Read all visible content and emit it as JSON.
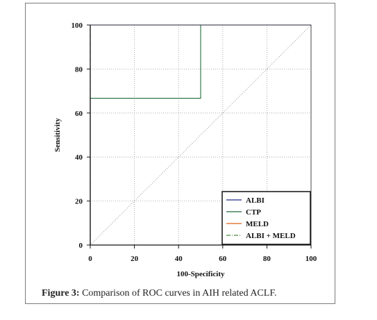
{
  "figure": {
    "caption_label": "Figure 3:",
    "caption_text": " Comparison of ROC curves in AIH related ACLF."
  },
  "chart_data": {
    "type": "line",
    "xlabel": "100-Specificity",
    "ylabel": "Sensitivity",
    "xlim": [
      0,
      100
    ],
    "ylim": [
      0,
      100
    ],
    "xticks": [
      0,
      20,
      40,
      60,
      80,
      100
    ],
    "yticks": [
      0,
      20,
      40,
      60,
      80,
      100
    ],
    "grid": true,
    "legend_position": "bottom-right",
    "reference_line": {
      "x": [
        0,
        100
      ],
      "y": [
        0,
        100
      ],
      "style": "dotted",
      "color": "#999999"
    },
    "series": [
      {
        "name": "ALBI",
        "color": "#1f2a8a",
        "dash": "solid",
        "x": [
          0,
          0,
          100
        ],
        "y": [
          0,
          100,
          100
        ]
      },
      {
        "name": "CTP",
        "color": "#1f6b3a",
        "dash": "solid",
        "x": [
          0,
          0,
          50,
          50,
          100
        ],
        "y": [
          0,
          66.7,
          66.7,
          100,
          100
        ]
      },
      {
        "name": "MELD",
        "color": "#e0601a",
        "dash": "solid",
        "x": [
          0,
          0,
          100
        ],
        "y": [
          0,
          100,
          100
        ]
      },
      {
        "name": "ALBI + MELD",
        "color": "#4a8a3a",
        "dash": "dashdot",
        "x": [
          0,
          0,
          100
        ],
        "y": [
          0,
          100,
          100
        ]
      }
    ]
  }
}
